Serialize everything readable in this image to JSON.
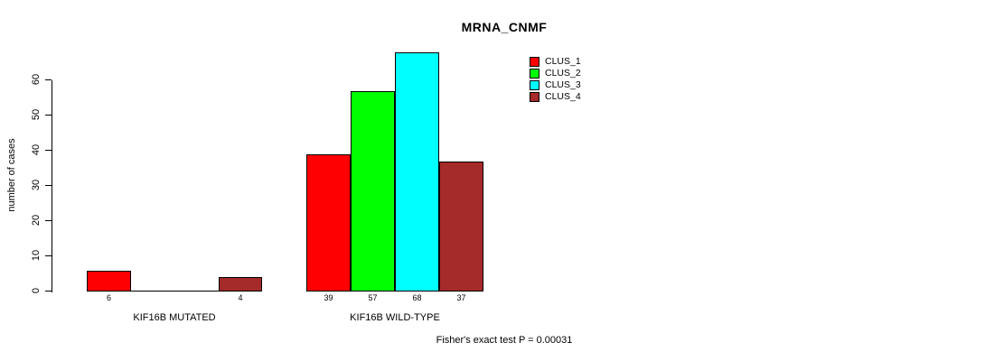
{
  "title": "MRNA_CNMF",
  "footer": "Fisher's exact test P = 0.00031",
  "chart_data": {
    "type": "bar",
    "title": "MRNA_CNMF",
    "xlabel": "",
    "ylabel": "number of cases",
    "categories": [
      "KIF16B MUTATED",
      "KIF16B WILD-TYPE"
    ],
    "series": [
      {
        "name": "CLUS_1",
        "color": "#FF0000",
        "values": [
          6,
          39
        ]
      },
      {
        "name": "CLUS_2",
        "color": "#00FF00",
        "values": [
          0,
          57
        ]
      },
      {
        "name": "CLUS_3",
        "color": "#00FFFF",
        "values": [
          0,
          68
        ]
      },
      {
        "name": "CLUS_4",
        "color": "#A52A2A",
        "values": [
          4,
          37
        ]
      }
    ],
    "yticks": [
      0,
      10,
      20,
      30,
      40,
      50,
      60
    ],
    "ylim": [
      0,
      68
    ],
    "grid": false,
    "legend_position": "top-right",
    "bar_value_labels": true,
    "annotation": "Fisher's exact test P = 0.00031"
  }
}
